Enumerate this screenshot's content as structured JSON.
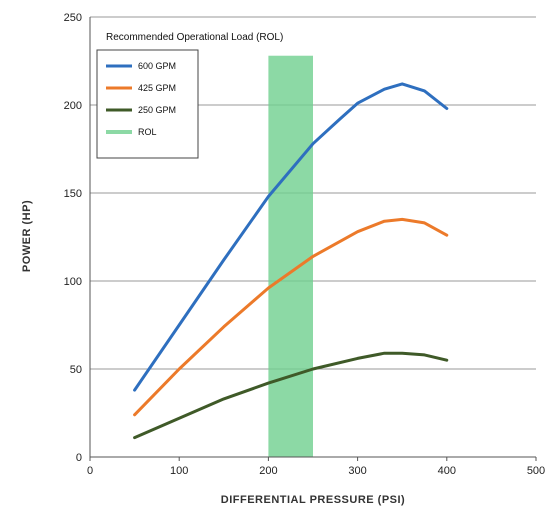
{
  "chart_data": {
    "type": "line",
    "title": "",
    "xlabel": "DIFFERENTIAL PRESSURE (PSI)",
    "ylabel": "POWER (HP)",
    "xlim": [
      0,
      500
    ],
    "ylim": [
      0,
      250
    ],
    "x_ticks": [
      "0",
      "100",
      "200",
      "300",
      "400",
      "500"
    ],
    "y_ticks": [
      "0",
      "50",
      "100",
      "150",
      "200",
      "250"
    ],
    "grid": "horizontal",
    "legend_title": "Recommended Operational Load (ROL)",
    "legend_position": "top-left",
    "series": [
      {
        "name": "600 GPM",
        "color": "#2e6fbf",
        "points": [
          [
            50,
            38
          ],
          [
            100,
            75
          ],
          [
            150,
            112
          ],
          [
            200,
            148
          ],
          [
            250,
            178
          ],
          [
            280,
            192
          ],
          [
            300,
            201
          ],
          [
            330,
            209
          ],
          [
            350,
            212
          ],
          [
            375,
            208
          ],
          [
            400,
            198
          ]
        ]
      },
      {
        "name": "425 GPM",
        "color": "#ec7a2a",
        "points": [
          [
            50,
            24
          ],
          [
            100,
            50
          ],
          [
            150,
            74
          ],
          [
            200,
            96
          ],
          [
            250,
            114
          ],
          [
            300,
            128
          ],
          [
            330,
            134
          ],
          [
            350,
            135
          ],
          [
            375,
            133
          ],
          [
            400,
            126
          ]
        ]
      },
      {
        "name": "250 GPM",
        "color": "#3f5a28",
        "points": [
          [
            50,
            11
          ],
          [
            100,
            22
          ],
          [
            150,
            33
          ],
          [
            200,
            42
          ],
          [
            250,
            50
          ],
          [
            300,
            56
          ],
          [
            330,
            59
          ],
          [
            350,
            59
          ],
          [
            375,
            58
          ],
          [
            400,
            55
          ]
        ]
      }
    ],
    "rol_band": {
      "name": "ROL",
      "color": "#6fcf8f",
      "x_range": [
        200,
        250
      ],
      "y_top": 228
    }
  }
}
